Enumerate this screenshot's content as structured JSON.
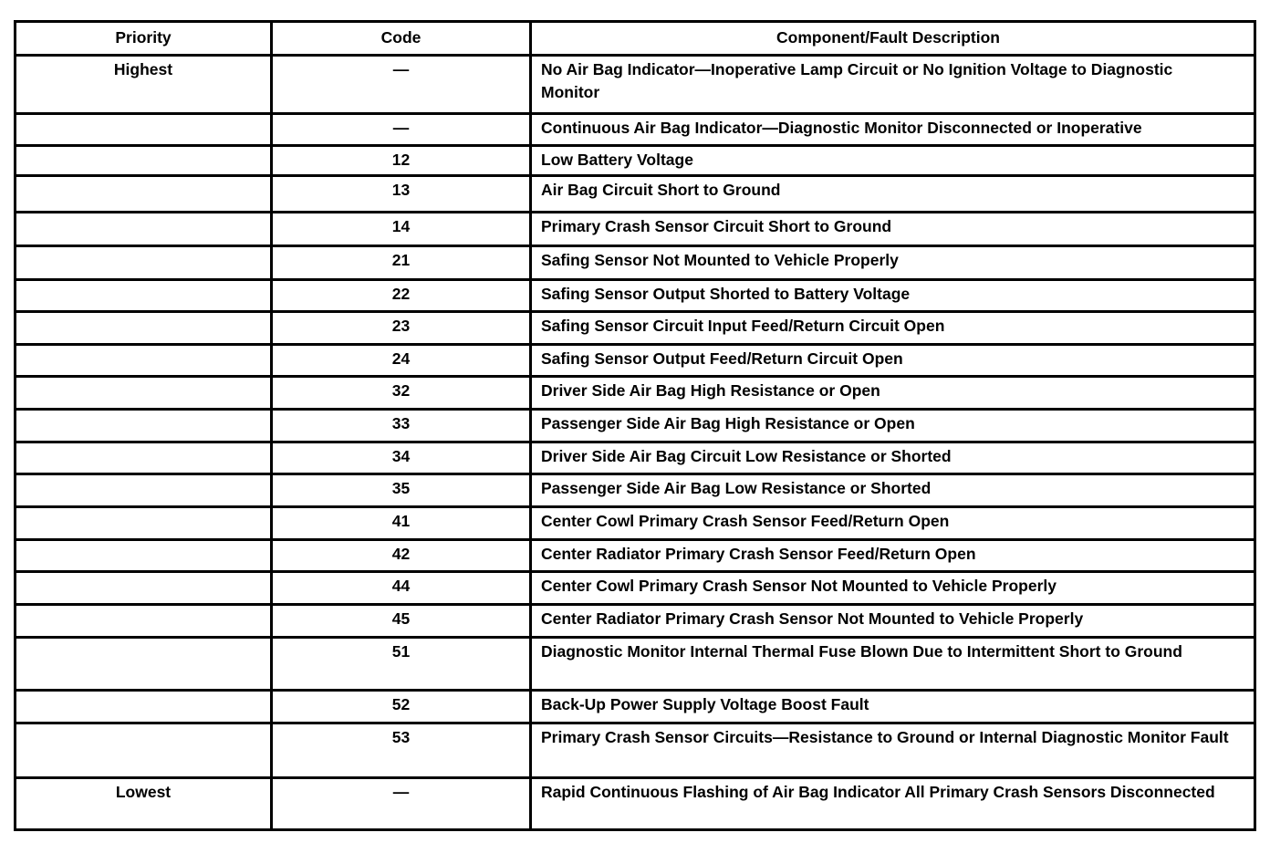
{
  "header": {
    "priority": "Priority",
    "code": "Code",
    "description": "Component/Fault Description"
  },
  "rows": [
    {
      "priority": "Highest",
      "code": "—",
      "description": "No Air Bag Indicator—Inoperative Lamp Circuit or No Ignition Voltage to Diagnostic Monitor"
    },
    {
      "priority": "",
      "code": "—",
      "description": "Continuous Air Bag Indicator—Diagnostic Monitor Disconnected or Inoperative"
    },
    {
      "priority": "",
      "code": "12",
      "description": "Low Battery Voltage"
    },
    {
      "priority": "",
      "code": "13",
      "description": "Air Bag Circuit Short to Ground"
    },
    {
      "priority": "",
      "code": "14",
      "description": "Primary Crash Sensor Circuit Short to Ground"
    },
    {
      "priority": "",
      "code": "21",
      "description": "Safing Sensor Not Mounted to Vehicle Properly"
    },
    {
      "priority": "",
      "code": "22",
      "description": "Safing Sensor Output Shorted to Battery Voltage"
    },
    {
      "priority": "",
      "code": "23",
      "description": "Safing Sensor Circuit Input Feed/Return Circuit Open"
    },
    {
      "priority": "",
      "code": "24",
      "description": "Safing Sensor Output Feed/Return Circuit Open"
    },
    {
      "priority": "",
      "code": "32",
      "description": "Driver Side Air Bag High Resistance or Open"
    },
    {
      "priority": "",
      "code": "33",
      "description": "Passenger Side Air Bag High Resistance or Open"
    },
    {
      "priority": "",
      "code": "34",
      "description": "Driver Side Air Bag Circuit Low Resistance or Shorted"
    },
    {
      "priority": "",
      "code": "35",
      "description": "Passenger Side Air Bag Low Resistance or Shorted"
    },
    {
      "priority": "",
      "code": "41",
      "description": "Center Cowl Primary Crash Sensor Feed/Return Open"
    },
    {
      "priority": "",
      "code": "42",
      "description": "Center Radiator Primary Crash Sensor Feed/Return Open"
    },
    {
      "priority": "",
      "code": "44",
      "description": "Center Cowl Primary Crash Sensor Not Mounted to Vehicle Properly"
    },
    {
      "priority": "",
      "code": "45",
      "description": "Center Radiator Primary Crash Sensor Not Mounted to Vehicle Properly"
    },
    {
      "priority": "",
      "code": "51",
      "description": "Diagnostic Monitor Internal Thermal Fuse Blown Due to Intermittent Short to Ground"
    },
    {
      "priority": "",
      "code": "52",
      "description": "Back-Up Power Supply Voltage Boost Fault"
    },
    {
      "priority": "",
      "code": "53",
      "description": "Primary Crash Sensor Circuits—Resistance to Ground or Internal Diagnostic Monitor Fault"
    },
    {
      "priority": "Lowest",
      "code": "—",
      "description": "Rapid Continuous Flashing of Air Bag Indicator All Primary Crash Sensors Disconnected"
    }
  ]
}
